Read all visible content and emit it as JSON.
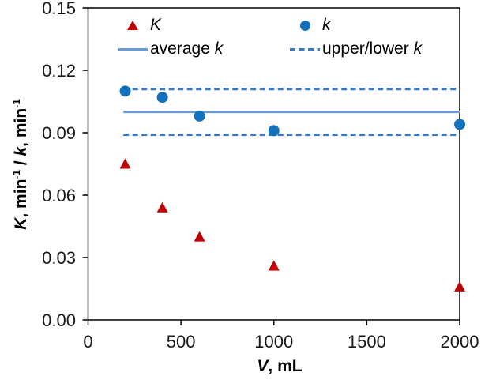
{
  "chart_data": {
    "type": "scatter",
    "title": "",
    "xlabel_segments": [
      {
        "t": "V",
        "i": true
      },
      {
        "t": ", mL"
      }
    ],
    "ylabel_segments": [
      {
        "t": "K",
        "i": true
      },
      {
        "t": ", min"
      },
      {
        "t": "-1",
        "sup": true
      },
      {
        "t": " / "
      },
      {
        "t": "k",
        "i": true
      },
      {
        "t": ", min"
      },
      {
        "t": "-1",
        "sup": true
      }
    ],
    "xlim": [
      0,
      2000
    ],
    "ylim": [
      0,
      0.15
    ],
    "grid": false,
    "xticks": {
      "values": [
        0,
        500,
        1000,
        1500,
        2000
      ],
      "labels": [
        "0",
        "500",
        "1000",
        "1500",
        "2000"
      ]
    },
    "yticks": {
      "values": [
        0,
        0.03,
        0.06,
        0.09,
        0.12,
        0.15
      ],
      "labels": [
        "0.00",
        "0.03",
        "0.06",
        "0.09",
        "0.12",
        "0.15"
      ]
    },
    "series": [
      {
        "name": "K",
        "marker": "triangle",
        "color": "#c00000",
        "points": [
          [
            200,
            0.075
          ],
          [
            400,
            0.054
          ],
          [
            600,
            0.04
          ],
          [
            1000,
            0.026
          ],
          [
            2000,
            0.016
          ]
        ]
      },
      {
        "name": "k",
        "marker": "circle",
        "color": "#1472bd",
        "points": [
          [
            200,
            0.11
          ],
          [
            400,
            0.107
          ],
          [
            600,
            0.098
          ],
          [
            1000,
            0.091
          ],
          [
            2000,
            0.094
          ]
        ]
      }
    ],
    "lines": [
      {
        "name": "average k",
        "style": "solid",
        "color": "#699bd5",
        "y": 0.1,
        "x_from": 190,
        "x_to": 2000
      },
      {
        "name": "upper k",
        "style": "dashed",
        "color": "#3a78c3",
        "y": 0.111,
        "x_from": 190,
        "x_to": 2000
      },
      {
        "name": "lower k",
        "style": "dashed",
        "color": "#3a78c3",
        "y": 0.089,
        "x_from": 190,
        "x_to": 2000
      }
    ],
    "legend": {
      "position": "top-inside",
      "items": [
        {
          "marker": "triangle",
          "color": "#c00000",
          "segments": [
            {
              "t": "K",
              "i": true
            }
          ]
        },
        {
          "marker": "circle",
          "color": "#1472bd",
          "segments": [
            {
              "t": "k",
              "i": true
            }
          ]
        },
        {
          "marker": "solid-line",
          "color": "#699bd5",
          "segments": [
            {
              "t": "average "
            },
            {
              "t": "k",
              "i": true
            }
          ]
        },
        {
          "marker": "dashed-line",
          "color": "#3a78c3",
          "segments": [
            {
              "t": "upper/lower "
            },
            {
              "t": "k",
              "i": true
            }
          ]
        }
      ]
    },
    "axis_color": "#000000",
    "tick_label_color": "#1a1a1a"
  }
}
